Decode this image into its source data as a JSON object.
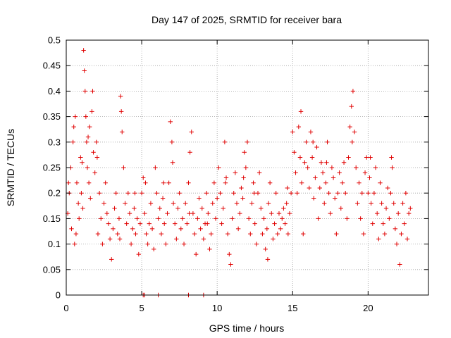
{
  "chart_data": {
    "type": "scatter",
    "title": "Day 147 of 2025, SRMTID for receiver bara",
    "xlabel": "GPS time / hours",
    "ylabel": "SRMTID / TECUs",
    "xlim": [
      0,
      24
    ],
    "ylim": [
      0,
      0.5
    ],
    "x_ticks": [
      0,
      5,
      10,
      15,
      20
    ],
    "x_tick_labels": [
      "0",
      "5",
      "10",
      "15",
      "20"
    ],
    "y_ticks": [
      0,
      0.05,
      0.1,
      0.15,
      0.2,
      0.25,
      0.3,
      0.35,
      0.4,
      0.45,
      0.5
    ],
    "y_tick_labels": [
      "0",
      "0.05",
      "0.1",
      "0.15",
      "0.2",
      "0.25",
      "0.3",
      "0.35",
      "0.4",
      "0.45",
      "0.5"
    ],
    "grid": true,
    "marker": "plus",
    "marker_color": "#e00000",
    "series": [
      {
        "name": "SRMTID",
        "points": [
          [
            0.1,
            0.16
          ],
          [
            0.2,
            0.2
          ],
          [
            0.3,
            0.25
          ],
          [
            0.35,
            0.13
          ],
          [
            0.45,
            0.3
          ],
          [
            0.5,
            0.33
          ],
          [
            0.55,
            0.1
          ],
          [
            0.6,
            0.35
          ],
          [
            0.7,
            0.22
          ],
          [
            0.8,
            0.18
          ],
          [
            0.85,
            0.15
          ],
          [
            0.95,
            0.27
          ],
          [
            1.0,
            0.2
          ],
          [
            1.1,
            0.17
          ],
          [
            1.15,
            0.48
          ],
          [
            1.2,
            0.44
          ],
          [
            1.25,
            0.4
          ],
          [
            1.3,
            0.35
          ],
          [
            1.35,
            0.3
          ],
          [
            1.4,
            0.25
          ],
          [
            1.5,
            0.22
          ],
          [
            1.55,
            0.33
          ],
          [
            1.6,
            0.19
          ],
          [
            1.7,
            0.36
          ],
          [
            1.75,
            0.4
          ],
          [
            1.8,
            0.28
          ],
          [
            1.9,
            0.24
          ],
          [
            2.0,
            0.3
          ],
          [
            2.1,
            0.12
          ],
          [
            2.2,
            0.2
          ],
          [
            2.3,
            0.15
          ],
          [
            2.4,
            0.1
          ],
          [
            2.5,
            0.18
          ],
          [
            2.6,
            0.22
          ],
          [
            2.7,
            0.16
          ],
          [
            2.8,
            0.14
          ],
          [
            2.9,
            0.11
          ],
          [
            3.0,
            0.07
          ],
          [
            3.1,
            0.13
          ],
          [
            3.2,
            0.17
          ],
          [
            3.3,
            0.2
          ],
          [
            3.4,
            0.12
          ],
          [
            3.5,
            0.15
          ],
          [
            3.6,
            0.39
          ],
          [
            3.65,
            0.36
          ],
          [
            3.7,
            0.32
          ],
          [
            3.8,
            0.25
          ],
          [
            3.9,
            0.18
          ],
          [
            4.0,
            0.14
          ],
          [
            4.1,
            0.2
          ],
          [
            4.2,
            0.16
          ],
          [
            4.3,
            0.1
          ],
          [
            4.4,
            0.13
          ],
          [
            4.5,
            0.17
          ],
          [
            4.6,
            0.12
          ],
          [
            4.7,
            0.15
          ],
          [
            4.8,
            0.08
          ],
          [
            4.9,
            0.14
          ],
          [
            5.0,
            0.2
          ],
          [
            5.1,
            0.23
          ],
          [
            5.2,
            0.16
          ],
          [
            5.3,
            0.12
          ],
          [
            5.4,
            0.1
          ],
          [
            5.5,
            0.14
          ],
          [
            5.6,
            0.18
          ],
          [
            5.7,
            0.13
          ],
          [
            5.8,
            0.09
          ],
          [
            5.9,
            0.25
          ],
          [
            6.0,
            0.2
          ],
          [
            6.1,
            0.15
          ],
          [
            6.2,
            0.17
          ],
          [
            6.3,
            0.12
          ],
          [
            6.4,
            0.19
          ],
          [
            6.5,
            0.14
          ],
          [
            6.6,
            0.1
          ],
          [
            6.7,
            0.16
          ],
          [
            6.8,
            0.22
          ],
          [
            6.9,
            0.34
          ],
          [
            7.0,
            0.3
          ],
          [
            7.1,
            0.18
          ],
          [
            7.2,
            0.14
          ],
          [
            7.3,
            0.11
          ],
          [
            7.4,
            0.17
          ],
          [
            7.5,
            0.2
          ],
          [
            7.6,
            0.13
          ],
          [
            7.7,
            0.15
          ],
          [
            7.8,
            0.1
          ],
          [
            7.9,
            0.18
          ],
          [
            8.0,
            0.14
          ],
          [
            8.1,
            0.22
          ],
          [
            8.2,
            0.28
          ],
          [
            8.3,
            0.32
          ],
          [
            8.4,
            0.16
          ],
          [
            8.5,
            0.12
          ],
          [
            8.6,
            0.08
          ],
          [
            8.7,
            0.15
          ],
          [
            8.8,
            0.19
          ],
          [
            8.9,
            0.13
          ],
          [
            9.0,
            0.17
          ],
          [
            9.1,
            0.11
          ],
          [
            9.2,
            0.14
          ],
          [
            9.3,
            0.2
          ],
          [
            9.4,
            0.16
          ],
          [
            9.5,
            0.09
          ],
          [
            9.6,
            0.12
          ],
          [
            9.7,
            0.18
          ],
          [
            9.8,
            0.22
          ],
          [
            9.9,
            0.15
          ],
          [
            10.0,
            0.19
          ],
          [
            10.1,
            0.25
          ],
          [
            10.2,
            0.2
          ],
          [
            10.3,
            0.14
          ],
          [
            10.4,
            0.17
          ],
          [
            10.5,
            0.3
          ],
          [
            10.6,
            0.23
          ],
          [
            10.7,
            0.12
          ],
          [
            10.8,
            0.08
          ],
          [
            10.9,
            0.06
          ],
          [
            11.0,
            0.15
          ],
          [
            11.1,
            0.2
          ],
          [
            11.2,
            0.24
          ],
          [
            11.3,
            0.18
          ],
          [
            11.4,
            0.13
          ],
          [
            11.5,
            0.16
          ],
          [
            11.6,
            0.21
          ],
          [
            11.7,
            0.19
          ],
          [
            11.8,
            0.28
          ],
          [
            11.9,
            0.25
          ],
          [
            12.0,
            0.3
          ],
          [
            12.1,
            0.15
          ],
          [
            12.2,
            0.12
          ],
          [
            12.3,
            0.18
          ],
          [
            12.4,
            0.22
          ],
          [
            12.5,
            0.14
          ],
          [
            12.6,
            0.1
          ],
          [
            12.7,
            0.2
          ],
          [
            12.8,
            0.24
          ],
          [
            12.9,
            0.17
          ],
          [
            13.0,
            0.12
          ],
          [
            13.1,
            0.15
          ],
          [
            13.2,
            0.09
          ],
          [
            13.3,
            0.13
          ],
          [
            13.4,
            0.18
          ],
          [
            13.5,
            0.22
          ],
          [
            13.6,
            0.16
          ],
          [
            13.7,
            0.11
          ],
          [
            13.8,
            0.14
          ],
          [
            13.9,
            0.2
          ],
          [
            14.0,
            0.12
          ],
          [
            14.1,
            0.16
          ],
          [
            14.2,
            0.13
          ],
          [
            14.3,
            0.15
          ],
          [
            14.4,
            0.17
          ],
          [
            14.5,
            0.14
          ],
          [
            14.6,
            0.18
          ],
          [
            14.7,
            0.12
          ],
          [
            14.8,
            0.16
          ],
          [
            14.9,
            0.2
          ],
          [
            15.0,
            0.32
          ],
          [
            15.1,
            0.28
          ],
          [
            15.2,
            0.24
          ],
          [
            15.3,
            0.2
          ],
          [
            15.4,
            0.33
          ],
          [
            15.5,
            0.27
          ],
          [
            15.6,
            0.22
          ],
          [
            15.7,
            0.12
          ],
          [
            15.8,
            0.26
          ],
          [
            15.9,
            0.3
          ],
          [
            16.0,
            0.25
          ],
          [
            16.1,
            0.21
          ],
          [
            16.2,
            0.32
          ],
          [
            16.3,
            0.27
          ],
          [
            16.4,
            0.19
          ],
          [
            16.5,
            0.23
          ],
          [
            16.6,
            0.29
          ],
          [
            16.7,
            0.15
          ],
          [
            16.8,
            0.21
          ],
          [
            16.9,
            0.26
          ],
          [
            17.0,
            0.24
          ],
          [
            17.1,
            0.18
          ],
          [
            17.2,
            0.22
          ],
          [
            17.3,
            0.3
          ],
          [
            17.4,
            0.2
          ],
          [
            17.5,
            0.16
          ],
          [
            17.6,
            0.25
          ],
          [
            17.7,
            0.23
          ],
          [
            17.8,
            0.19
          ],
          [
            17.9,
            0.12
          ],
          [
            18.0,
            0.2
          ],
          [
            18.1,
            0.24
          ],
          [
            18.2,
            0.17
          ],
          [
            18.3,
            0.22
          ],
          [
            18.4,
            0.26
          ],
          [
            18.5,
            0.2
          ],
          [
            18.6,
            0.15
          ],
          [
            18.7,
            0.27
          ],
          [
            18.8,
            0.33
          ],
          [
            18.9,
            0.37
          ],
          [
            19.0,
            0.4
          ],
          [
            19.1,
            0.32
          ],
          [
            19.2,
            0.25
          ],
          [
            19.3,
            0.18
          ],
          [
            19.4,
            0.22
          ],
          [
            19.5,
            0.15
          ],
          [
            19.6,
            0.2
          ],
          [
            19.7,
            0.12
          ],
          [
            19.8,
            0.24
          ],
          [
            19.9,
            0.27
          ],
          [
            20.0,
            0.2
          ],
          [
            20.1,
            0.23
          ],
          [
            20.2,
            0.18
          ],
          [
            20.3,
            0.14
          ],
          [
            20.4,
            0.2
          ],
          [
            20.5,
            0.25
          ],
          [
            20.6,
            0.16
          ],
          [
            20.7,
            0.11
          ],
          [
            20.8,
            0.22
          ],
          [
            20.9,
            0.18
          ],
          [
            21.0,
            0.14
          ],
          [
            21.1,
            0.12
          ],
          [
            21.2,
            0.17
          ],
          [
            21.3,
            0.21
          ],
          [
            21.4,
            0.15
          ],
          [
            21.5,
            0.2
          ],
          [
            21.6,
            0.25
          ],
          [
            21.7,
            0.18
          ],
          [
            21.8,
            0.13
          ],
          [
            21.9,
            0.1
          ],
          [
            22.0,
            0.16
          ],
          [
            22.1,
            0.06
          ],
          [
            22.2,
            0.12
          ],
          [
            22.3,
            0.18
          ],
          [
            22.4,
            0.14
          ],
          [
            22.5,
            0.2
          ],
          [
            22.6,
            0.11
          ],
          [
            22.7,
            0.16
          ],
          [
            22.8,
            0.17
          ],
          [
            0.15,
            0.22
          ],
          [
            0.65,
            0.12
          ],
          [
            1.05,
            0.26
          ],
          [
            1.45,
            0.31
          ],
          [
            2.05,
            0.27
          ],
          [
            3.55,
            0.11
          ],
          [
            4.55,
            0.2
          ],
          [
            5.25,
            0.22
          ],
          [
            6.45,
            0.22
          ],
          [
            7.05,
            0.26
          ],
          [
            8.15,
            0.16
          ],
          [
            9.35,
            0.14
          ],
          [
            10.55,
            0.22
          ],
          [
            11.75,
            0.23
          ],
          [
            12.45,
            0.2
          ],
          [
            13.35,
            0.07
          ],
          [
            14.65,
            0.21
          ],
          [
            15.55,
            0.36
          ],
          [
            16.35,
            0.3
          ],
          [
            17.25,
            0.26
          ],
          [
            18.95,
            0.3
          ],
          [
            20.15,
            0.27
          ],
          [
            21.55,
            0.27
          ],
          [
            5.1,
            0.0
          ],
          [
            5.2,
            0.0
          ],
          [
            6.1,
            0.0
          ],
          [
            8.1,
            0.0
          ],
          [
            9.1,
            0.0
          ]
        ]
      }
    ]
  }
}
